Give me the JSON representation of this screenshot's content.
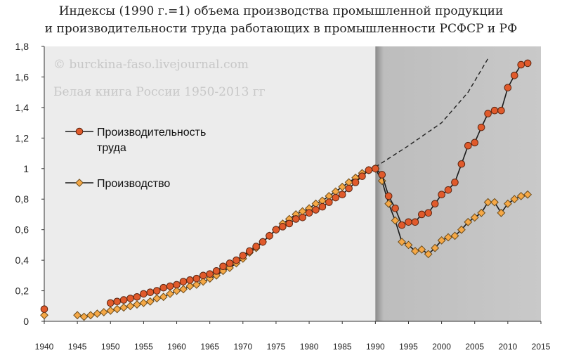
{
  "chart_data": {
    "type": "line",
    "title_lines": [
      "Индексы (1990 г.=1) объема производства промышленной продукции",
      "и производительности труда работающих в промышленности РСФСР и РФ"
    ],
    "watermarks": [
      "© burckina-faso.livejournal.com",
      "Белая книга России 1950-2013 гг"
    ],
    "xlabel": "",
    "ylabel": "",
    "xlim": [
      1940,
      2015
    ],
    "ylim": [
      0,
      1.8
    ],
    "x_ticks": [
      1940,
      1945,
      1950,
      1955,
      1960,
      1965,
      1970,
      1975,
      1980,
      1985,
      1990,
      1995,
      2000,
      2005,
      2010,
      2015
    ],
    "y_ticks": [
      0,
      0.2,
      0.4,
      0.6,
      0.8,
      1.0,
      1.2,
      1.4,
      1.6,
      1.8
    ],
    "y_tick_labels": [
      "0",
      "0,2",
      "0,4",
      "0,6",
      "0,8",
      "1",
      "1,2",
      "1,4",
      "1,6",
      "1,8"
    ],
    "grid": false,
    "legend_position": "left",
    "shaded_region": {
      "from": 1990,
      "to": 2015,
      "color": "#c8c8c8"
    },
    "series": [
      {
        "name": "Производительность труда",
        "name_lines": [
          "Производительность",
          "труда"
        ],
        "marker": "circle",
        "color": "#e05a2b",
        "points": [
          [
            1940,
            0.08
          ],
          [
            1950,
            0.12
          ],
          [
            1951,
            0.13
          ],
          [
            1952,
            0.14
          ],
          [
            1953,
            0.15
          ],
          [
            1954,
            0.16
          ],
          [
            1955,
            0.18
          ],
          [
            1956,
            0.19
          ],
          [
            1957,
            0.2
          ],
          [
            1958,
            0.22
          ],
          [
            1959,
            0.23
          ],
          [
            1960,
            0.24
          ],
          [
            1961,
            0.26
          ],
          [
            1962,
            0.27
          ],
          [
            1963,
            0.28
          ],
          [
            1964,
            0.3
          ],
          [
            1965,
            0.31
          ],
          [
            1966,
            0.33
          ],
          [
            1967,
            0.36
          ],
          [
            1968,
            0.38
          ],
          [
            1969,
            0.4
          ],
          [
            1970,
            0.43
          ],
          [
            1971,
            0.46
          ],
          [
            1972,
            0.49
          ],
          [
            1973,
            0.52
          ],
          [
            1974,
            0.56
          ],
          [
            1975,
            0.6
          ],
          [
            1976,
            0.62
          ],
          [
            1977,
            0.64
          ],
          [
            1978,
            0.67
          ],
          [
            1979,
            0.68
          ],
          [
            1980,
            0.71
          ],
          [
            1981,
            0.73
          ],
          [
            1982,
            0.75
          ],
          [
            1983,
            0.78
          ],
          [
            1984,
            0.81
          ],
          [
            1985,
            0.83
          ],
          [
            1986,
            0.87
          ],
          [
            1987,
            0.91
          ],
          [
            1988,
            0.95
          ],
          [
            1989,
            0.99
          ],
          [
            1990,
            1.0
          ],
          [
            1991,
            0.96
          ],
          [
            1992,
            0.82
          ],
          [
            1993,
            0.74
          ],
          [
            1994,
            0.63
          ],
          [
            1995,
            0.65
          ],
          [
            1996,
            0.65
          ],
          [
            1997,
            0.7
          ],
          [
            1998,
            0.71
          ],
          [
            1999,
            0.77
          ],
          [
            2000,
            0.83
          ],
          [
            2001,
            0.86
          ],
          [
            2002,
            0.91
          ],
          [
            2003,
            1.03
          ],
          [
            2004,
            1.15
          ],
          [
            2005,
            1.17
          ],
          [
            2006,
            1.27
          ],
          [
            2007,
            1.36
          ],
          [
            2008,
            1.38
          ],
          [
            2009,
            1.38
          ],
          [
            2010,
            1.53
          ],
          [
            2011,
            1.61
          ],
          [
            2012,
            1.68
          ],
          [
            2013,
            1.69
          ]
        ]
      },
      {
        "name": "Производство",
        "name_lines": [
          "Производство"
        ],
        "marker": "diamond",
        "color": "#f5a846",
        "points": [
          [
            1940,
            0.04
          ],
          [
            1945,
            0.04
          ],
          [
            1946,
            0.03
          ],
          [
            1947,
            0.04
          ],
          [
            1948,
            0.05
          ],
          [
            1949,
            0.06
          ],
          [
            1950,
            0.07
          ],
          [
            1951,
            0.08
          ],
          [
            1952,
            0.09
          ],
          [
            1953,
            0.1
          ],
          [
            1954,
            0.11
          ],
          [
            1955,
            0.12
          ],
          [
            1956,
            0.13
          ],
          [
            1957,
            0.15
          ],
          [
            1958,
            0.16
          ],
          [
            1959,
            0.18
          ],
          [
            1960,
            0.2
          ],
          [
            1961,
            0.21
          ],
          [
            1962,
            0.23
          ],
          [
            1963,
            0.24
          ],
          [
            1964,
            0.26
          ],
          [
            1965,
            0.28
          ],
          [
            1966,
            0.3
          ],
          [
            1967,
            0.33
          ],
          [
            1968,
            0.35
          ],
          [
            1969,
            0.38
          ],
          [
            1970,
            0.41
          ],
          [
            1971,
            0.45
          ],
          [
            1972,
            0.48
          ],
          [
            1973,
            0.52
          ],
          [
            1974,
            0.56
          ],
          [
            1975,
            0.6
          ],
          [
            1976,
            0.64
          ],
          [
            1977,
            0.67
          ],
          [
            1978,
            0.7
          ],
          [
            1979,
            0.72
          ],
          [
            1980,
            0.74
          ],
          [
            1981,
            0.77
          ],
          [
            1982,
            0.79
          ],
          [
            1983,
            0.82
          ],
          [
            1984,
            0.85
          ],
          [
            1985,
            0.88
          ],
          [
            1986,
            0.91
          ],
          [
            1987,
            0.94
          ],
          [
            1988,
            0.97
          ],
          [
            1989,
            0.99
          ],
          [
            1990,
            1.0
          ],
          [
            1991,
            0.92
          ],
          [
            1992,
            0.77
          ],
          [
            1993,
            0.66
          ],
          [
            1994,
            0.52
          ],
          [
            1995,
            0.5
          ],
          [
            1996,
            0.46
          ],
          [
            1997,
            0.47
          ],
          [
            1998,
            0.44
          ],
          [
            1999,
            0.48
          ],
          [
            2000,
            0.53
          ],
          [
            2001,
            0.55
          ],
          [
            2002,
            0.56
          ],
          [
            2003,
            0.6
          ],
          [
            2004,
            0.65
          ],
          [
            2005,
            0.68
          ],
          [
            2006,
            0.71
          ],
          [
            2007,
            0.78
          ],
          [
            2008,
            0.78
          ],
          [
            2009,
            0.71
          ],
          [
            2010,
            0.77
          ],
          [
            2011,
            0.8
          ],
          [
            2012,
            0.82
          ],
          [
            2013,
            0.83
          ]
        ]
      }
    ],
    "trend_line": {
      "style": "dashed",
      "color": "#222222",
      "points": [
        [
          1990,
          1.01
        ],
        [
          1995,
          1.15
        ],
        [
          2000,
          1.3
        ],
        [
          2004,
          1.5
        ],
        [
          2007,
          1.72
        ]
      ]
    }
  }
}
